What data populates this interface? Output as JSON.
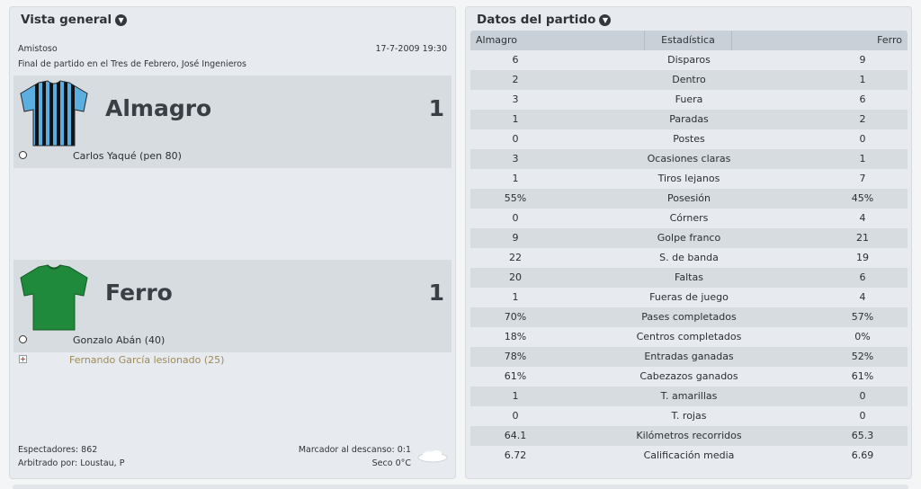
{
  "overview": {
    "title": "Vista general",
    "competition": "Amistoso",
    "datetime": "17-7-2009 19:30",
    "venue_text": "Final de partido en el Tres de Febrero, José Ingenieros",
    "home": {
      "name": "Almagro",
      "score": "1",
      "shirt_icon": "striped-shirt-icon",
      "events": [
        {
          "type": "goal",
          "icon": "ball-icon",
          "text": "Carlos Yaqué (pen 80)"
        }
      ]
    },
    "away": {
      "name": "Ferro",
      "score": "1",
      "shirt_icon": "green-shirt-icon",
      "events": [
        {
          "type": "goal",
          "icon": "ball-icon",
          "text": "Gonzalo Abán (40)"
        },
        {
          "type": "injury",
          "icon": "injury-icon",
          "text": "Fernando García lesionado (25)"
        }
      ]
    },
    "attendance": "Espectadores: 862",
    "referee": "Arbitrado por: Loustau, P",
    "halftime": "Marcador al descanso: 0:1",
    "weather": "Seco 0°C",
    "weather_icon": "cloud-icon"
  },
  "stats": {
    "title": "Datos del partido",
    "header": {
      "home": "Almagro",
      "stat": "Estadística",
      "away": "Ferro"
    },
    "rows": [
      {
        "home": "6",
        "label": "Disparos",
        "away": "9"
      },
      {
        "home": "2",
        "label": "Dentro",
        "away": "1"
      },
      {
        "home": "3",
        "label": "Fuera",
        "away": "6"
      },
      {
        "home": "1",
        "label": "Paradas",
        "away": "2"
      },
      {
        "home": "0",
        "label": "Postes",
        "away": "0"
      },
      {
        "home": "3",
        "label": "Ocasiones claras",
        "away": "1"
      },
      {
        "home": "1",
        "label": "Tiros lejanos",
        "away": "7"
      },
      {
        "home": "55%",
        "label": "Posesión",
        "away": "45%"
      },
      {
        "home": "0",
        "label": "Córners",
        "away": "4"
      },
      {
        "home": "9",
        "label": "Golpe franco",
        "away": "21"
      },
      {
        "home": "22",
        "label": "S. de banda",
        "away": "19"
      },
      {
        "home": "20",
        "label": "Faltas",
        "away": "6"
      },
      {
        "home": "1",
        "label": "Fueras de juego",
        "away": "4"
      },
      {
        "home": "70%",
        "label": "Pases completados",
        "away": "57%"
      },
      {
        "home": "18%",
        "label": "Centros completados",
        "away": "0%"
      },
      {
        "home": "78%",
        "label": "Entradas ganadas",
        "away": "52%"
      },
      {
        "home": "61%",
        "label": "Cabezazos ganados",
        "away": "61%"
      },
      {
        "home": "1",
        "label": "T. amarillas",
        "away": "0"
      },
      {
        "home": "0",
        "label": "T. rojas",
        "away": "0"
      },
      {
        "home": "64.1",
        "label": "Kilómetros recorridos",
        "away": "65.3"
      },
      {
        "home": "6.72",
        "label": "Calificación media",
        "away": "6.69"
      }
    ]
  },
  "colors": {
    "home_shirt_primary": "#5aaee0",
    "home_shirt_stripes": "#111111",
    "away_shirt": "#1f8a3b",
    "injury_text": "#9e8a55"
  }
}
